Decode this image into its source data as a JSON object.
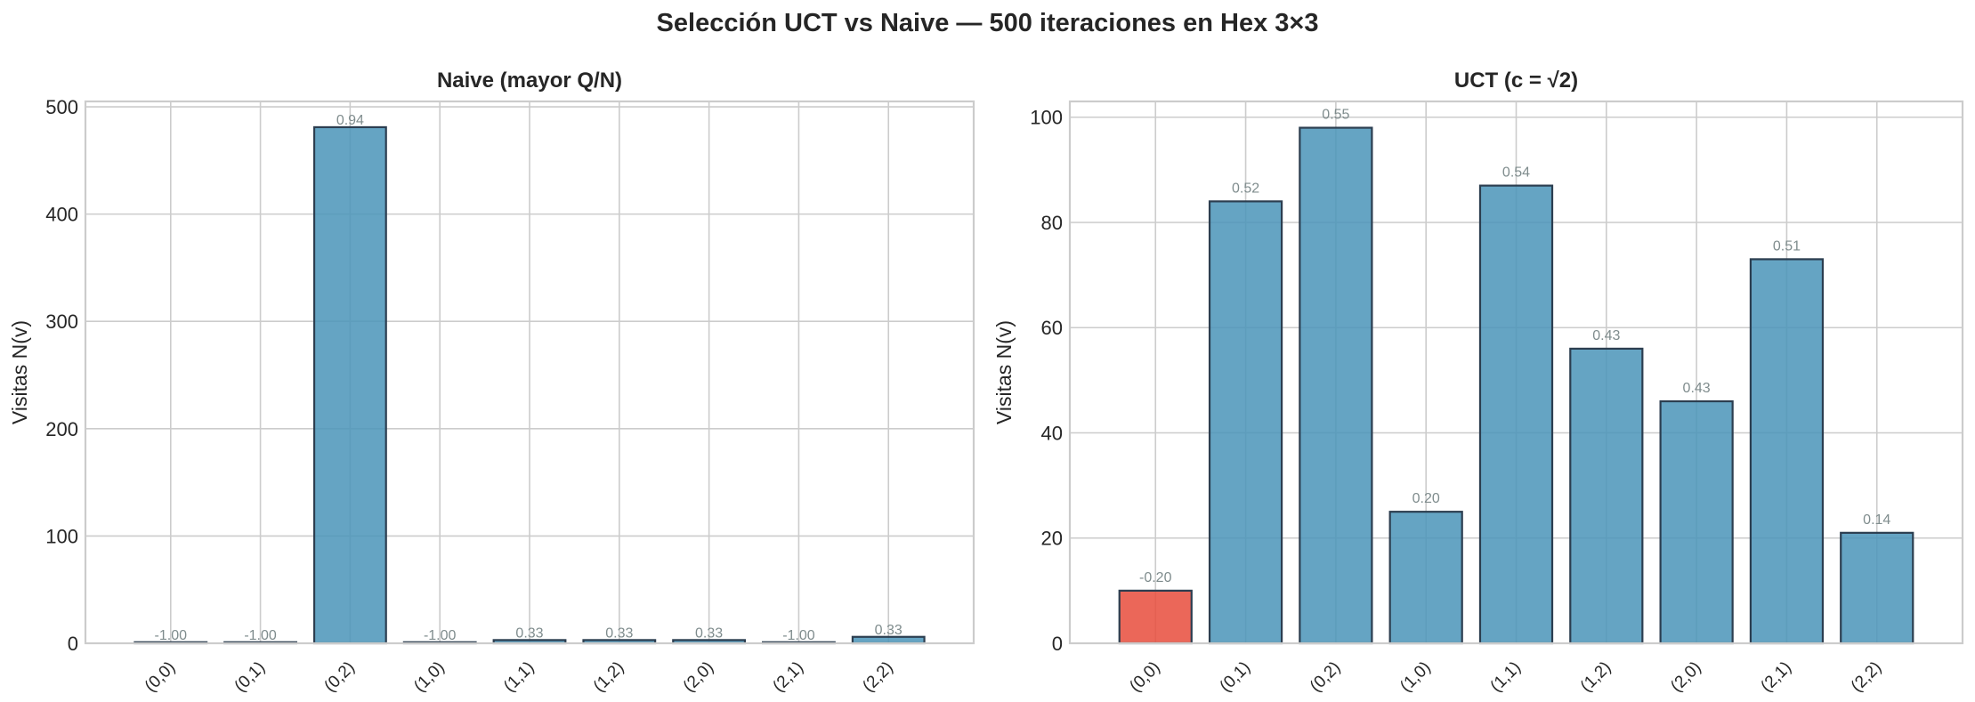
{
  "figure": {
    "suptitle": "Selección UCT vs Naive — 500 iteraciones en Hex 3×3",
    "colors": {
      "bar": "#4a94b8",
      "bar_edge": "#2c3e50",
      "highlight": "#e74c3c",
      "label": "#7f8c8d",
      "grid": "#cccccc"
    }
  },
  "chart_data": [
    {
      "type": "bar",
      "title": "Naive (mayor Q/N)",
      "xlabel": "",
      "ylabel": "Visitas N(v)",
      "categories": [
        "(0,0)",
        "(0,1)",
        "(0,2)",
        "(1,0)",
        "(1,1)",
        "(1,2)",
        "(2,0)",
        "(2,1)",
        "(2,2)"
      ],
      "values": [
        1,
        1,
        481,
        1,
        3,
        3,
        3,
        1,
        6
      ],
      "bar_labels": [
        "-1.00",
        "-1.00",
        "0.94",
        "-1.00",
        "0.33",
        "0.33",
        "0.33",
        "-1.00",
        "0.33"
      ],
      "highlight_index": null,
      "yticks": [
        0,
        100,
        200,
        300,
        400,
        500
      ],
      "ylim": [
        0,
        505
      ],
      "grid": true
    },
    {
      "type": "bar",
      "title": "UCT (c = √2)",
      "xlabel": "",
      "ylabel": "Visitas N(v)",
      "categories": [
        "(0,0)",
        "(0,1)",
        "(0,2)",
        "(1,0)",
        "(1,1)",
        "(1,2)",
        "(2,0)",
        "(2,1)",
        "(2,2)"
      ],
      "values": [
        10,
        84,
        98,
        25,
        87,
        56,
        46,
        73,
        21
      ],
      "bar_labels": [
        "-0.20",
        "0.52",
        "0.55",
        "0.20",
        "0.54",
        "0.43",
        "0.43",
        "0.51",
        "0.14"
      ],
      "highlight_index": 0,
      "yticks": [
        0,
        20,
        40,
        60,
        80,
        100
      ],
      "ylim": [
        0,
        103
      ],
      "grid": true
    }
  ]
}
